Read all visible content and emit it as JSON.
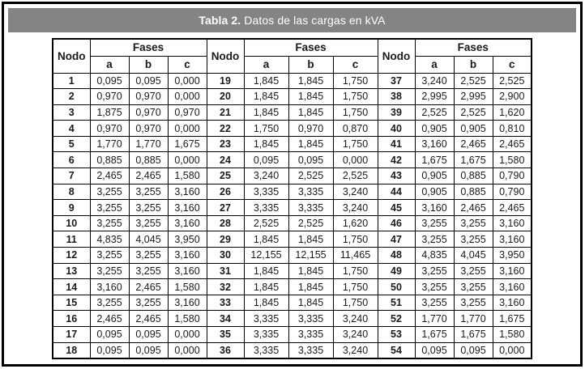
{
  "title_bar": {
    "label_bold": "Tabla 2.",
    "label_rest": " Datos de las cargas en kVA",
    "bg_color": "#848487",
    "text_color": "#ffffff"
  },
  "table": {
    "node_header": "Nodo",
    "phase_group_header": "Fases",
    "phase_headers": [
      "a",
      "b",
      "c"
    ],
    "rows_per_column_group": 18,
    "nodes": [
      {
        "node": "1",
        "a": "0,095",
        "b": "0,095",
        "c": "0,000"
      },
      {
        "node": "2",
        "a": "0,970",
        "b": "0,970",
        "c": "0,000"
      },
      {
        "node": "3",
        "a": "1,875",
        "b": "0,970",
        "c": "0,970"
      },
      {
        "node": "4",
        "a": "0,970",
        "b": "0,970",
        "c": "0,000"
      },
      {
        "node": "5",
        "a": "1,770",
        "b": "1,770",
        "c": "1,675"
      },
      {
        "node": "6",
        "a": "0,885",
        "b": "0,885",
        "c": "0,000"
      },
      {
        "node": "7",
        "a": "2,465",
        "b": "2,465",
        "c": "1,580"
      },
      {
        "node": "8",
        "a": "3,255",
        "b": "3,255",
        "c": "3,160"
      },
      {
        "node": "9",
        "a": "3,255",
        "b": "3,255",
        "c": "3,160"
      },
      {
        "node": "10",
        "a": "3,255",
        "b": "3,255",
        "c": "3,160"
      },
      {
        "node": "11",
        "a": "4,835",
        "b": "4,045",
        "c": "3,950"
      },
      {
        "node": "12",
        "a": "3,255",
        "b": "3,255",
        "c": "3,160"
      },
      {
        "node": "13",
        "a": "3,255",
        "b": "3,255",
        "c": "3,160"
      },
      {
        "node": "14",
        "a": "3,160",
        "b": "2,465",
        "c": "1,580"
      },
      {
        "node": "15",
        "a": "3,255",
        "b": "3,255",
        "c": "3,160"
      },
      {
        "node": "16",
        "a": "2,465",
        "b": "2,465",
        "c": "1,580"
      },
      {
        "node": "17",
        "a": "0,095",
        "b": "0,095",
        "c": "0,000"
      },
      {
        "node": "18",
        "a": "0,095",
        "b": "0,095",
        "c": "0,000"
      },
      {
        "node": "19",
        "a": "1,845",
        "b": "1,845",
        "c": "1,750"
      },
      {
        "node": "20",
        "a": "1,845",
        "b": "1,845",
        "c": "1,750"
      },
      {
        "node": "21",
        "a": "1,845",
        "b": "1,845",
        "c": "1,750"
      },
      {
        "node": "22",
        "a": "1,750",
        "b": "0,970",
        "c": "0,870"
      },
      {
        "node": "23",
        "a": "1,845",
        "b": "1,845",
        "c": "1,750"
      },
      {
        "node": "24",
        "a": "0,095",
        "b": "0,095",
        "c": "0,000"
      },
      {
        "node": "25",
        "a": "3,240",
        "b": "2,525",
        "c": "2,525"
      },
      {
        "node": "26",
        "a": "3,335",
        "b": "3,335",
        "c": "3,240"
      },
      {
        "node": "27",
        "a": "3,335",
        "b": "3,335",
        "c": "3,240"
      },
      {
        "node": "28",
        "a": "2,525",
        "b": "2,525",
        "c": "1,620"
      },
      {
        "node": "29",
        "a": "1,845",
        "b": "1,845",
        "c": "1,750"
      },
      {
        "node": "30",
        "a": "12,155",
        "b": "12,155",
        "c": "11,465"
      },
      {
        "node": "31",
        "a": "1,845",
        "b": "1,845",
        "c": "1,750"
      },
      {
        "node": "32",
        "a": "1,845",
        "b": "1,845",
        "c": "1,750"
      },
      {
        "node": "33",
        "a": "1,845",
        "b": "1,845",
        "c": "1,750"
      },
      {
        "node": "34",
        "a": "3,335",
        "b": "3,335",
        "c": "3,240"
      },
      {
        "node": "35",
        "a": "3,335",
        "b": "3,335",
        "c": "3,240"
      },
      {
        "node": "36",
        "a": "3,335",
        "b": "3,335",
        "c": "3,240"
      },
      {
        "node": "37",
        "a": "3,240",
        "b": "2,525",
        "c": "2,525"
      },
      {
        "node": "38",
        "a": "2,995",
        "b": "2,995",
        "c": "2,900"
      },
      {
        "node": "39",
        "a": "2,525",
        "b": "2,525",
        "c": "1,620"
      },
      {
        "node": "40",
        "a": "0,905",
        "b": "0,905",
        "c": "0,810"
      },
      {
        "node": "41",
        "a": "3,160",
        "b": "2,465",
        "c": "2,465"
      },
      {
        "node": "42",
        "a": "1,675",
        "b": "1,675",
        "c": "1,580"
      },
      {
        "node": "43",
        "a": "0,905",
        "b": "0,885",
        "c": "0,790"
      },
      {
        "node": "44",
        "a": "0,905",
        "b": "0,885",
        "c": "0,790"
      },
      {
        "node": "45",
        "a": "3,160",
        "b": "2,465",
        "c": "2,465"
      },
      {
        "node": "46",
        "a": "3,255",
        "b": "3,255",
        "c": "3,160"
      },
      {
        "node": "47",
        "a": "3,255",
        "b": "3,255",
        "c": "3,160"
      },
      {
        "node": "48",
        "a": "4,835",
        "b": "4,045",
        "c": "3,950"
      },
      {
        "node": "49",
        "a": "3,255",
        "b": "3,255",
        "c": "3,160"
      },
      {
        "node": "50",
        "a": "3,255",
        "b": "3,255",
        "c": "3,160"
      },
      {
        "node": "51",
        "a": "3,255",
        "b": "3,255",
        "c": "3,160"
      },
      {
        "node": "52",
        "a": "1,770",
        "b": "1,770",
        "c": "1,675"
      },
      {
        "node": "53",
        "a": "1,675",
        "b": "1,675",
        "c": "1,580"
      },
      {
        "node": "54",
        "a": "0,095",
        "b": "0,095",
        "c": "0,000"
      }
    ]
  }
}
